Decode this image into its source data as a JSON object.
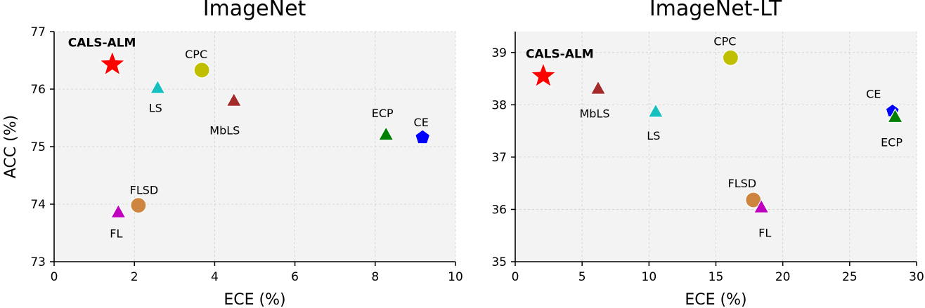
{
  "chart_data": [
    {
      "type": "scatter",
      "title": "ImageNet",
      "xlabel": "ECE (%)",
      "ylabel": "ACC (%)",
      "xlim": [
        0,
        10
      ],
      "ylim": [
        73,
        77
      ],
      "xticks": [
        "0",
        "2",
        "4",
        "6",
        "8",
        "10"
      ],
      "yticks": [
        "73",
        "74",
        "75",
        "76",
        "77"
      ],
      "grid": true,
      "points": [
        {
          "label": "CALS-ALM",
          "x": 1.45,
          "y": 76.43,
          "marker": "star",
          "color": "#ff0000",
          "bold": true
        },
        {
          "label": "LS",
          "x": 2.58,
          "y": 76.02,
          "marker": "triangle",
          "color": "#17bfbf"
        },
        {
          "label": "CPC",
          "x": 3.68,
          "y": 76.33,
          "marker": "circle",
          "color": "#bfbf00"
        },
        {
          "label": "MbLS",
          "x": 4.48,
          "y": 75.8,
          "marker": "triangle",
          "color": "#a52a2a"
        },
        {
          "label": "ECP",
          "x": 8.27,
          "y": 75.21,
          "marker": "triangle",
          "color": "#008000"
        },
        {
          "label": "CE",
          "x": 9.18,
          "y": 75.16,
          "marker": "pentagon",
          "color": "#0000ff"
        },
        {
          "label": "FLSD",
          "x": 2.1,
          "y": 73.98,
          "marker": "circle",
          "color": "#cd853f"
        },
        {
          "label": "FL",
          "x": 1.6,
          "y": 73.86,
          "marker": "triangle",
          "color": "#bf00bf"
        }
      ]
    },
    {
      "type": "scatter",
      "title": "ImageNet-LT",
      "xlabel": "ECE (%)",
      "ylabel": "",
      "xlim": [
        0,
        30
      ],
      "ylim": [
        35,
        39.4
      ],
      "xticks": [
        "0",
        "5",
        "10",
        "15",
        "20",
        "25",
        "30"
      ],
      "yticks": [
        "35",
        "36",
        "37",
        "38",
        "39"
      ],
      "grid": true,
      "points": [
        {
          "label": "CALS-ALM",
          "x": 2.1,
          "y": 38.55,
          "marker": "star",
          "color": "#ff0000",
          "bold": true
        },
        {
          "label": "CPC",
          "x": 16.1,
          "y": 38.9,
          "marker": "circle",
          "color": "#bfbf00"
        },
        {
          "label": "MbLS",
          "x": 6.2,
          "y": 38.31,
          "marker": "triangle",
          "color": "#a52a2a"
        },
        {
          "label": "LS",
          "x": 10.5,
          "y": 37.87,
          "marker": "triangle",
          "color": "#17bfbf"
        },
        {
          "label": "CE",
          "x": 28.2,
          "y": 37.88,
          "marker": "pentagon",
          "color": "#0000ff"
        },
        {
          "label": "ECP",
          "x": 28.4,
          "y": 37.77,
          "marker": "triangle",
          "color": "#008000"
        },
        {
          "label": "FLSD",
          "x": 17.8,
          "y": 36.18,
          "marker": "circle",
          "color": "#cd853f"
        },
        {
          "label": "FL",
          "x": 18.4,
          "y": 36.04,
          "marker": "triangle",
          "color": "#bf00bf"
        }
      ]
    }
  ]
}
